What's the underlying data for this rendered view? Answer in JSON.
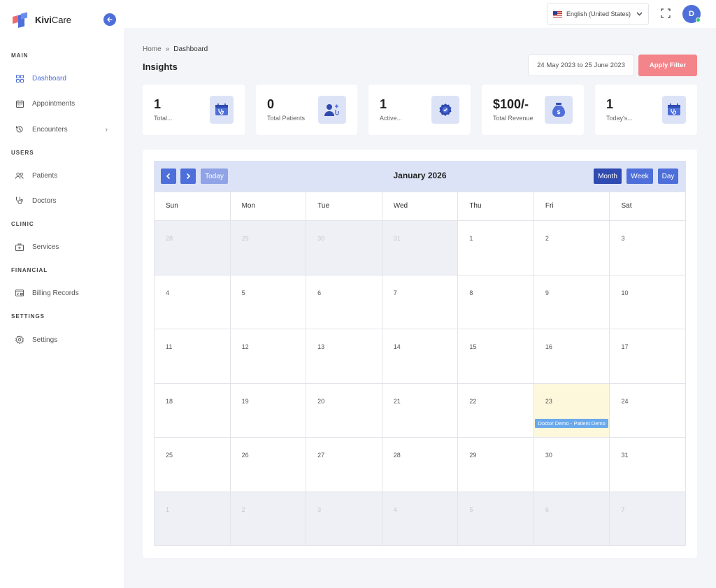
{
  "brand": {
    "name_bold": "Kivi",
    "name_rest": "Care"
  },
  "sidebar": {
    "sections": [
      {
        "label": "MAIN",
        "items": [
          {
            "label": "Dashboard",
            "icon": "grid-icon",
            "active": true
          },
          {
            "label": "Appointments",
            "icon": "calendar-icon"
          },
          {
            "label": "Encounters",
            "icon": "history-icon",
            "chevron": true
          }
        ]
      },
      {
        "label": "USERS",
        "items": [
          {
            "label": "Patients",
            "icon": "users-icon"
          },
          {
            "label": "Doctors",
            "icon": "stethoscope-icon"
          }
        ]
      },
      {
        "label": "CLINIC",
        "items": [
          {
            "label": "Services",
            "icon": "medkit-icon"
          }
        ]
      },
      {
        "label": "FINANCIAL",
        "items": [
          {
            "label": "Billing Records",
            "icon": "billing-icon"
          }
        ]
      },
      {
        "label": "SETTINGS",
        "items": [
          {
            "label": "Settings",
            "icon": "gear-icon"
          }
        ]
      }
    ]
  },
  "topbar": {
    "language": "English (United States)",
    "avatar_initial": "D"
  },
  "breadcrumb": {
    "home": "Home",
    "sep": "»",
    "current": "Dashboard"
  },
  "page_title": "Insights",
  "filter": {
    "date_range": "24 May 2023 to 25 June 2023",
    "apply_label": "Apply Filter"
  },
  "stats": [
    {
      "value": "1",
      "label": "Total...",
      "icon": "calendar-stethoscope-icon"
    },
    {
      "value": "0",
      "label": "Total Patients",
      "icon": "patient-icon"
    },
    {
      "value": "1",
      "label": "Active...",
      "icon": "badge-check-icon"
    },
    {
      "value": "$100/-",
      "label": "Total Revenue",
      "icon": "money-bag-icon"
    },
    {
      "value": "1",
      "label": "Today's...",
      "icon": "calendar-stethoscope-icon"
    }
  ],
  "calendar": {
    "title": "January 2026",
    "today_label": "Today",
    "views": [
      "Month",
      "Week",
      "Day"
    ],
    "weekdays": [
      "Sun",
      "Mon",
      "Tue",
      "Wed",
      "Thu",
      "Fri",
      "Sat"
    ],
    "weeks": [
      [
        "28",
        "29",
        "30",
        "31",
        "1",
        "2",
        "3"
      ],
      [
        "4",
        "5",
        "6",
        "7",
        "8",
        "9",
        "10"
      ],
      [
        "11",
        "12",
        "13",
        "14",
        "15",
        "16",
        "17"
      ],
      [
        "18",
        "19",
        "20",
        "21",
        "22",
        "23",
        "24"
      ],
      [
        "25",
        "26",
        "27",
        "28",
        "29",
        "30",
        "31"
      ],
      [
        "1",
        "2",
        "3",
        "4",
        "5",
        "6",
        "7"
      ]
    ],
    "event": {
      "label": "Doctor Demo - Patient Demo"
    }
  },
  "colors": {
    "accent": "#4e6fd9",
    "apply": "#f3848a",
    "event": "#6aa9ec",
    "today_bg": "#fdf8dc"
  }
}
